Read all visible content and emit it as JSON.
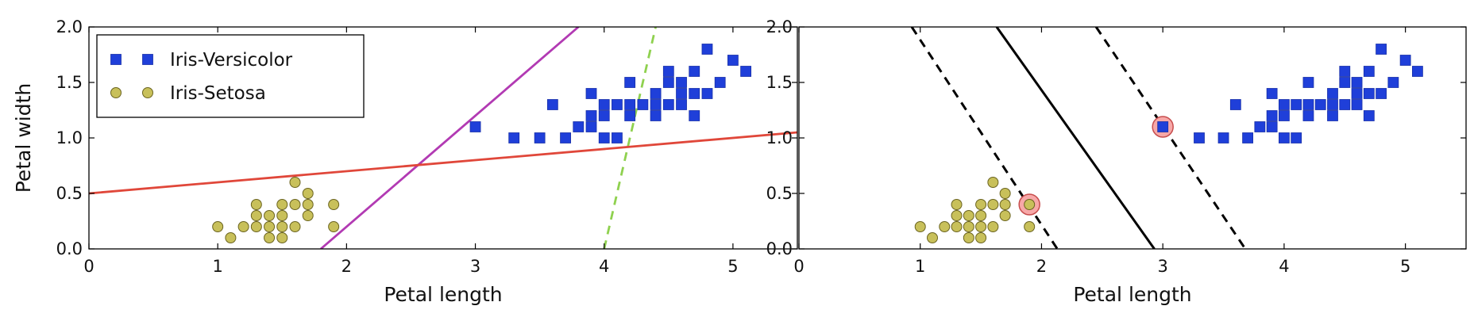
{
  "chart_data": [
    {
      "type": "scatter",
      "xlabel": "Petal length",
      "ylabel": "Petal width",
      "xlim": [
        0,
        5.5
      ],
      "ylim": [
        0,
        2.0
      ],
      "xticks": [
        "0",
        "1",
        "2",
        "3",
        "4",
        "5"
      ],
      "yticks": [
        "0.0",
        "0.5",
        "1.0",
        "1.5",
        "2.0"
      ],
      "grid": false,
      "legend": {
        "placement": "top-left",
        "entries": [
          {
            "label": "Iris-Versicolor",
            "marker": "square",
            "color": "#1f3fd9"
          },
          {
            "label": "Iris-Setosa",
            "marker": "circle",
            "color": "#c8c05a"
          }
        ]
      },
      "series": [
        {
          "name": "Iris-Versicolor",
          "marker": "square",
          "color": "#1f3fd9",
          "points": [
            [
              3.0,
              1.1
            ],
            [
              3.3,
              1.0
            ],
            [
              3.5,
              1.0
            ],
            [
              3.6,
              1.3
            ],
            [
              3.7,
              1.0
            ],
            [
              3.8,
              1.1
            ],
            [
              3.9,
              1.1
            ],
            [
              3.9,
              1.2
            ],
            [
              3.9,
              1.4
            ],
            [
              4.0,
              1.0
            ],
            [
              4.0,
              1.2
            ],
            [
              4.0,
              1.3
            ],
            [
              4.1,
              1.0
            ],
            [
              4.1,
              1.3
            ],
            [
              4.2,
              1.2
            ],
            [
              4.2,
              1.3
            ],
            [
              4.2,
              1.5
            ],
            [
              4.3,
              1.3
            ],
            [
              4.4,
              1.2
            ],
            [
              4.4,
              1.3
            ],
            [
              4.4,
              1.4
            ],
            [
              4.5,
              1.3
            ],
            [
              4.5,
              1.5
            ],
            [
              4.5,
              1.6
            ],
            [
              4.6,
              1.3
            ],
            [
              4.6,
              1.4
            ],
            [
              4.6,
              1.5
            ],
            [
              4.7,
              1.2
            ],
            [
              4.7,
              1.4
            ],
            [
              4.7,
              1.6
            ],
            [
              4.8,
              1.4
            ],
            [
              4.8,
              1.8
            ],
            [
              4.9,
              1.5
            ],
            [
              5.0,
              1.7
            ],
            [
              5.1,
              1.6
            ]
          ]
        },
        {
          "name": "Iris-Setosa",
          "marker": "circle",
          "color": "#c8c05a",
          "points": [
            [
              1.0,
              0.2
            ],
            [
              1.1,
              0.1
            ],
            [
              1.2,
              0.2
            ],
            [
              1.3,
              0.2
            ],
            [
              1.3,
              0.3
            ],
            [
              1.3,
              0.4
            ],
            [
              1.4,
              0.1
            ],
            [
              1.4,
              0.2
            ],
            [
              1.4,
              0.3
            ],
            [
              1.5,
              0.1
            ],
            [
              1.5,
              0.2
            ],
            [
              1.5,
              0.3
            ],
            [
              1.5,
              0.4
            ],
            [
              1.6,
              0.2
            ],
            [
              1.6,
              0.4
            ],
            [
              1.6,
              0.6
            ],
            [
              1.7,
              0.3
            ],
            [
              1.7,
              0.4
            ],
            [
              1.7,
              0.5
            ],
            [
              1.9,
              0.2
            ],
            [
              1.9,
              0.4
            ]
          ]
        }
      ],
      "lines": [
        {
          "color": "#8fd14f",
          "style": "dashed",
          "points": [
            [
              4.0,
              0.0
            ],
            [
              4.4,
              2.0
            ]
          ]
        },
        {
          "color": "#b23ab3",
          "style": "solid",
          "points": [
            [
              1.8,
              0.0
            ],
            [
              3.8,
              2.0
            ]
          ]
        },
        {
          "color": "#e0473a",
          "style": "solid",
          "points": [
            [
              0.0,
              0.5
            ],
            [
              5.5,
              1.05
            ]
          ]
        }
      ]
    },
    {
      "type": "scatter",
      "xlabel": "Petal length",
      "ylabel": "",
      "xlim": [
        0,
        5.5
      ],
      "ylim": [
        0,
        2.0
      ],
      "xticks": [
        "0",
        "1",
        "2",
        "3",
        "4",
        "5"
      ],
      "yticks": [
        "0.0",
        "0.5",
        "1.0",
        "1.5",
        "2.0"
      ],
      "grid": false,
      "series": [
        {
          "name": "Iris-Versicolor",
          "marker": "square",
          "color": "#1f3fd9",
          "points": [
            [
              3.0,
              1.1
            ],
            [
              3.3,
              1.0
            ],
            [
              3.5,
              1.0
            ],
            [
              3.6,
              1.3
            ],
            [
              3.7,
              1.0
            ],
            [
              3.8,
              1.1
            ],
            [
              3.9,
              1.1
            ],
            [
              3.9,
              1.2
            ],
            [
              3.9,
              1.4
            ],
            [
              4.0,
              1.0
            ],
            [
              4.0,
              1.2
            ],
            [
              4.0,
              1.3
            ],
            [
              4.1,
              1.0
            ],
            [
              4.1,
              1.3
            ],
            [
              4.2,
              1.2
            ],
            [
              4.2,
              1.3
            ],
            [
              4.2,
              1.5
            ],
            [
              4.3,
              1.3
            ],
            [
              4.4,
              1.2
            ],
            [
              4.4,
              1.3
            ],
            [
              4.4,
              1.4
            ],
            [
              4.5,
              1.3
            ],
            [
              4.5,
              1.5
            ],
            [
              4.5,
              1.6
            ],
            [
              4.6,
              1.3
            ],
            [
              4.6,
              1.4
            ],
            [
              4.6,
              1.5
            ],
            [
              4.7,
              1.2
            ],
            [
              4.7,
              1.4
            ],
            [
              4.7,
              1.6
            ],
            [
              4.8,
              1.4
            ],
            [
              4.8,
              1.8
            ],
            [
              4.9,
              1.5
            ],
            [
              5.0,
              1.7
            ],
            [
              5.1,
              1.6
            ]
          ]
        },
        {
          "name": "Iris-Setosa",
          "marker": "circle",
          "color": "#c8c05a",
          "points": [
            [
              1.0,
              0.2
            ],
            [
              1.1,
              0.1
            ],
            [
              1.2,
              0.2
            ],
            [
              1.3,
              0.2
            ],
            [
              1.3,
              0.3
            ],
            [
              1.3,
              0.4
            ],
            [
              1.4,
              0.1
            ],
            [
              1.4,
              0.2
            ],
            [
              1.4,
              0.3
            ],
            [
              1.5,
              0.1
            ],
            [
              1.5,
              0.2
            ],
            [
              1.5,
              0.3
            ],
            [
              1.5,
              0.4
            ],
            [
              1.6,
              0.2
            ],
            [
              1.6,
              0.4
            ],
            [
              1.6,
              0.6
            ],
            [
              1.7,
              0.3
            ],
            [
              1.7,
              0.4
            ],
            [
              1.7,
              0.5
            ],
            [
              1.9,
              0.2
            ],
            [
              1.9,
              0.4
            ]
          ]
        }
      ],
      "support_vectors": {
        "color": "#f7a8a8",
        "points": [
          [
            1.9,
            0.4
          ],
          [
            3.0,
            1.1
          ]
        ]
      },
      "lines": [
        {
          "color": "#000000",
          "style": "solid",
          "points": [
            [
              1.63,
              2.0
            ],
            [
              2.93,
              0.0
            ]
          ]
        },
        {
          "color": "#000000",
          "style": "dashed",
          "points": [
            [
              0.93,
              2.0
            ],
            [
              2.13,
              0.0
            ]
          ]
        },
        {
          "color": "#000000",
          "style": "dashed",
          "points": [
            [
              2.45,
              2.0
            ],
            [
              3.68,
              0.0
            ]
          ]
        }
      ]
    }
  ]
}
